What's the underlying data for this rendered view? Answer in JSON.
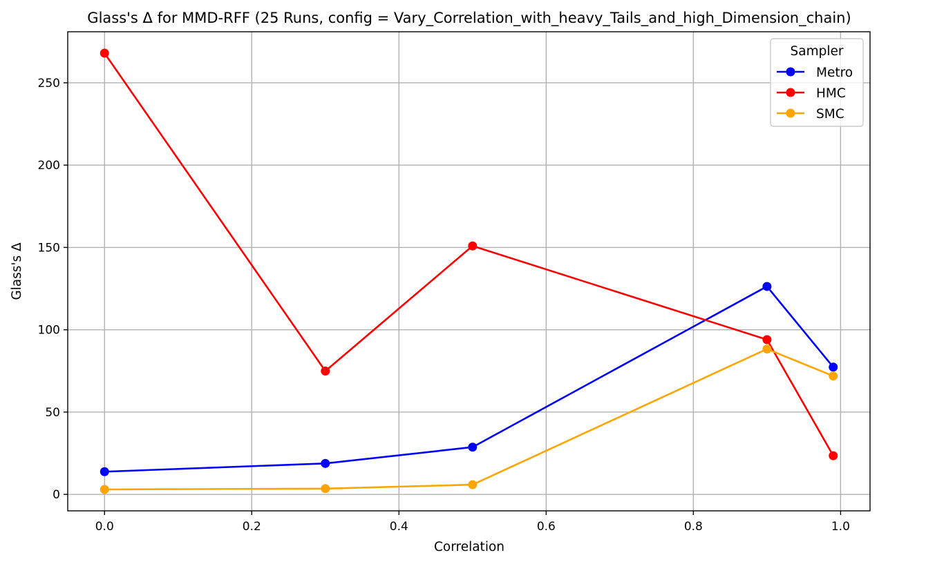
{
  "chart_data": {
    "type": "line",
    "title": "Glass's Δ for MMD-RFF (25 Runs, config = Vary_Correlation_with_heavy_Tails_and_high_Dimension_chain)",
    "xlabel": "Correlation",
    "ylabel": "Glass's Δ",
    "xlim": [
      -0.05,
      1.04
    ],
    "ylim": [
      -10,
      281
    ],
    "x_ticks": [
      0.0,
      0.2,
      0.4,
      0.6,
      0.8,
      1.0
    ],
    "x_tick_labels": [
      "0.0",
      "0.2",
      "0.4",
      "0.6",
      "0.8",
      "1.0"
    ],
    "y_ticks": [
      0,
      50,
      100,
      150,
      200,
      250
    ],
    "y_tick_labels": [
      "0",
      "50",
      "100",
      "150",
      "200",
      "250"
    ],
    "grid": true,
    "legend": {
      "title": "Sampler",
      "placement": "top-right"
    },
    "x": [
      0.0,
      0.3,
      0.5,
      0.9,
      0.99
    ],
    "series": [
      {
        "name": "Metro",
        "color": "#0000ff",
        "values": [
          13.8,
          18.8,
          28.7,
          126.3,
          77.3
        ]
      },
      {
        "name": "HMC",
        "color": "#ff0000",
        "values": [
          268.0,
          74.9,
          150.9,
          94.0,
          23.5
        ]
      },
      {
        "name": "SMC",
        "color": "#ffa500",
        "values": [
          3.0,
          3.5,
          5.9,
          88.3,
          71.9
        ]
      }
    ]
  }
}
